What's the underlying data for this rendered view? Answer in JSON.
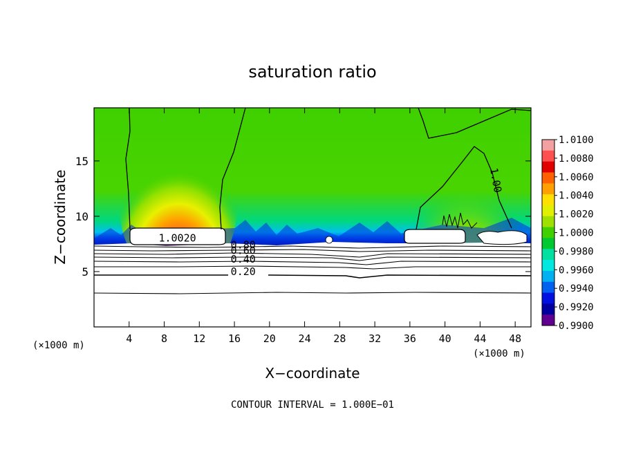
{
  "chart_data": {
    "type": "heatmap",
    "title": "saturation ratio",
    "xlabel": "X−coordinate",
    "ylabel": "Z−coordinate",
    "x_unit_left": "(×1000 m)",
    "x_unit_right": "(×1000 m)",
    "xlim": [
      0,
      49.8
    ],
    "ylim": [
      0,
      19.8
    ],
    "xticks": [
      4,
      8,
      12,
      16,
      20,
      24,
      28,
      32,
      36,
      40,
      44,
      48
    ],
    "yticks": [
      5,
      10,
      15
    ],
    "colorbar": {
      "labels": [
        "1.0100",
        "1.0080",
        "1.0060",
        "1.0040",
        "1.0020",
        "1.0000",
        "0.9980",
        "0.9960",
        "0.9940",
        "0.9920",
        "0.9900"
      ],
      "colors": [
        "#f4a0a0",
        "#ff5050",
        "#e00000",
        "#ff6000",
        "#ffa000",
        "#ffe000",
        "#e0f000",
        "#a0e000",
        "#40d000",
        "#00c830",
        "#00e0a0",
        "#00e8e0",
        "#00b0f0",
        "#0060f0",
        "#0010e0",
        "#0000a0",
        "#600090"
      ]
    },
    "contour_labels": [
      {
        "text": "1.00",
        "x": 45.4,
        "y": 13.2
      },
      {
        "text": "1.0020",
        "x": 9.5,
        "y": 7.7
      },
      {
        "text": "0.80",
        "x": 17.0,
        "y": 7.1
      },
      {
        "text": "0.60",
        "x": 17.0,
        "y": 6.6
      },
      {
        "text": "0.40",
        "x": 17.0,
        "y": 5.8
      },
      {
        "text": "0.20",
        "x": 17.0,
        "y": 4.7
      }
    ],
    "contour_interval_text": "CONTOUR INTERVAL = 1.000E−01",
    "grid": false,
    "legend": "right colorbar"
  }
}
